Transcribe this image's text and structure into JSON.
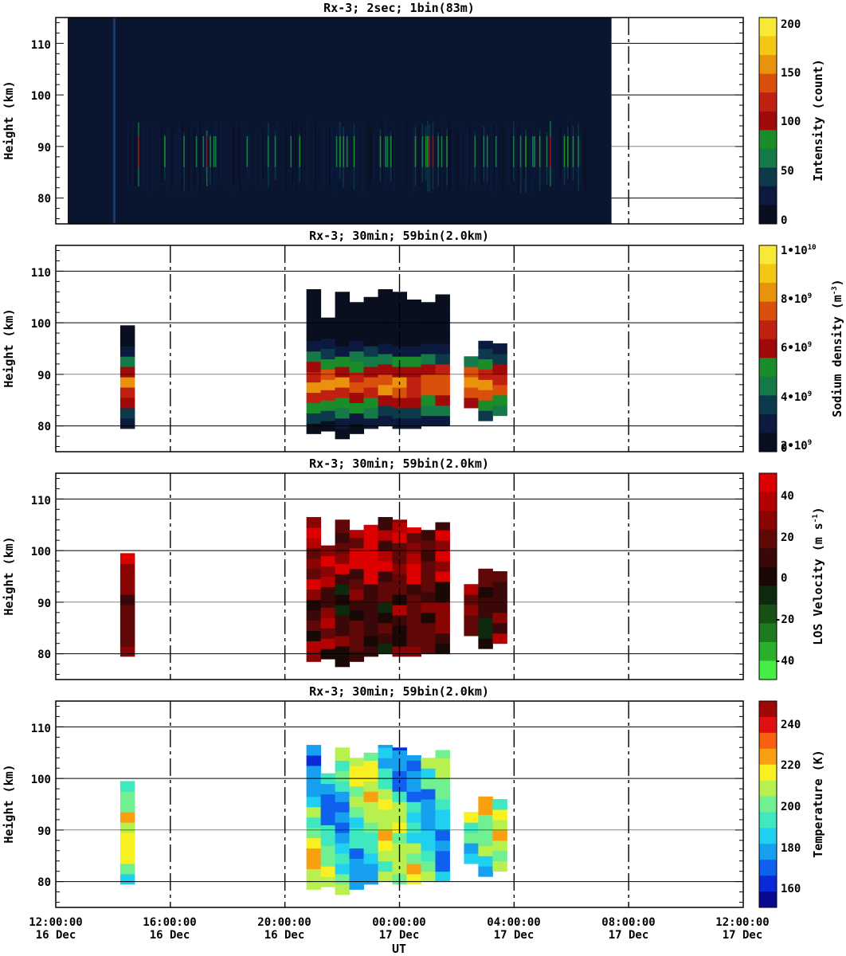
{
  "chart_data": [
    {
      "type": "heatmap",
      "title": "Rx-3;  2sec; 1bin(83m)",
      "ylabel": "Height (km)",
      "ylim": [
        75,
        115
      ],
      "yticks": [
        "110",
        "100",
        "90",
        "80"
      ],
      "colorbar": {
        "label": "Intensity (count)",
        "range": [
          0,
          200
        ],
        "ticks": [
          "200",
          "150",
          "100",
          "50",
          "0"
        ]
      },
      "note": "dense 2-second profiles, dark background, enhanced layer 82-95 km between ~14:30 and ~06:30 UT",
      "data_end_hour": 7.4,
      "bright_region": {
        "x_start_hour": 14.5,
        "x_end_hour": 6.5,
        "height_range": [
          81,
          95
        ],
        "peak_value": 110
      }
    },
    {
      "type": "heatmap",
      "title": "Rx-3; 30min; 59bin(2.0km)",
      "ylabel": "Height (km)",
      "ylim": [
        75,
        115
      ],
      "yticks": [
        "110",
        "100",
        "90",
        "80"
      ],
      "colorbar": {
        "label": "Sodium density (m^-3)",
        "range": [
          0,
          10000000000
        ],
        "ticks": [
          "1•10^10",
          "8•10^9",
          "6•10^9",
          "4•10^9",
          "2•10^9",
          "0"
        ]
      },
      "profiles": [
        {
          "t": 14.5,
          "bottom": 79.5,
          "top": 99.5
        },
        {
          "t": 21.0,
          "bottom": 78.5,
          "top": 106.5
        },
        {
          "t": 21.5,
          "bottom": 79,
          "top": 101
        },
        {
          "t": 22.0,
          "bottom": 77.5,
          "top": 106
        },
        {
          "t": 22.5,
          "bottom": 78.5,
          "top": 104
        },
        {
          "t": 23.0,
          "bottom": 79.5,
          "top": 105
        },
        {
          "t": 23.5,
          "bottom": 80,
          "top": 106.5
        },
        {
          "t": 0.0,
          "bottom": 79.5,
          "top": 106
        },
        {
          "t": 0.5,
          "bottom": 79.5,
          "top": 104.5
        },
        {
          "t": 1.0,
          "bottom": 80,
          "top": 104
        },
        {
          "t": 1.5,
          "bottom": 80,
          "top": 105.5
        },
        {
          "t": 2.5,
          "bottom": 83.5,
          "top": 93.5
        },
        {
          "t": 3.0,
          "bottom": 81,
          "top": 96.5
        },
        {
          "t": 3.5,
          "bottom": 82,
          "top": 96
        }
      ],
      "peak_height_km": 88,
      "peak_density": 7000000000
    },
    {
      "type": "heatmap",
      "title": "Rx-3; 30min; 59bin(2.0km)",
      "ylabel": "Height (km)",
      "ylim": [
        75,
        115
      ],
      "yticks": [
        "110",
        "100",
        "90",
        "80"
      ],
      "colorbar": {
        "label": "LOS Velocity (m s^-1)",
        "range": [
          -50,
          50
        ],
        "ticks": [
          "40",
          "20",
          "0",
          "-20",
          "-40"
        ]
      },
      "note": "mostly 0 to +40 m/s (dark red to red); same profile coverage as density panel"
    },
    {
      "type": "heatmap",
      "title": "Rx-3; 30min; 59bin(2.0km)",
      "ylabel": "Height (km)",
      "ylim": [
        75,
        115
      ],
      "yticks": [
        "110",
        "100",
        "90",
        "80"
      ],
      "colorbar": {
        "label": "Temperature (K)",
        "range": [
          150,
          250
        ],
        "ticks": [
          "240",
          "220",
          "200",
          "180",
          "160"
        ]
      },
      "note": "mostly 180-230 K; same profile coverage as density panel"
    }
  ],
  "x_axis": {
    "label": "UT",
    "ticks": [
      {
        "time": "12:00:00",
        "date": "16 Dec"
      },
      {
        "time": "16:00:00",
        "date": "16 Dec"
      },
      {
        "time": "20:00:00",
        "date": "16 Dec"
      },
      {
        "time": "00:00:00",
        "date": "17 Dec"
      },
      {
        "time": "04:00:00",
        "date": "17 Dec"
      },
      {
        "time": "08:00:00",
        "date": "17 Dec"
      },
      {
        "time": "12:00:00",
        "date": "17 Dec"
      }
    ],
    "range_hours": [
      0,
      24
    ]
  }
}
